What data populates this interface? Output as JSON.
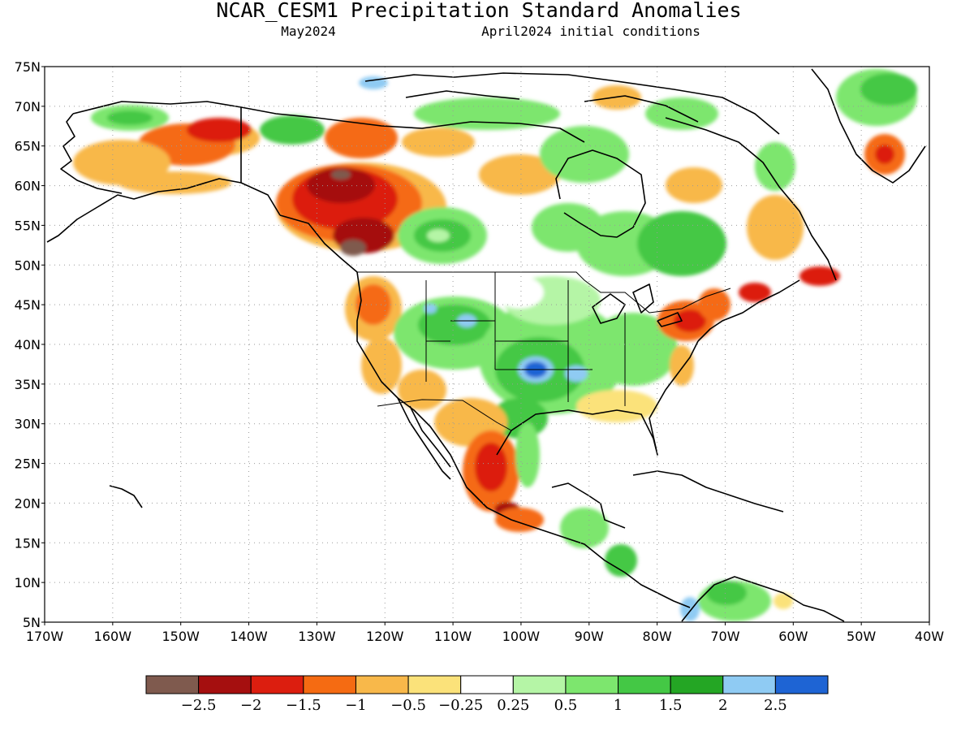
{
  "header": {
    "title": "NCAR_CESM1 Precipitation Standard Anomalies",
    "target_month": "May2024",
    "init_conditions": "April2024 initial conditions"
  },
  "axes": {
    "lat_labels": [
      "75N",
      "70N",
      "65N",
      "60N",
      "55N",
      "50N",
      "45N",
      "40N",
      "35N",
      "30N",
      "25N",
      "20N",
      "15N",
      "10N",
      "5N"
    ],
    "lon_labels": [
      "170W",
      "160W",
      "150W",
      "140W",
      "130W",
      "120W",
      "110W",
      "100W",
      "90W",
      "80W",
      "70W",
      "60W",
      "50W",
      "40W"
    ],
    "lat_range": [
      5,
      75
    ],
    "lon_range": [
      -170,
      -40
    ]
  },
  "legend": {
    "colors": [
      "#7f5a4e",
      "#a50f0f",
      "#dc1e0f",
      "#f56b12",
      "#f8b84a",
      "#fbe27a",
      "#ffffff",
      "#b5f5a6",
      "#7de66e",
      "#44c845",
      "#24a624",
      "#8fcbf3",
      "#1e64d4"
    ],
    "tick_labels": [
      "−2.5",
      "−2",
      "−1.5",
      "−1",
      "−0.5",
      "−0.25",
      "0.25",
      "0.5",
      "1",
      "1.5",
      "2",
      "2.5"
    ]
  }
}
